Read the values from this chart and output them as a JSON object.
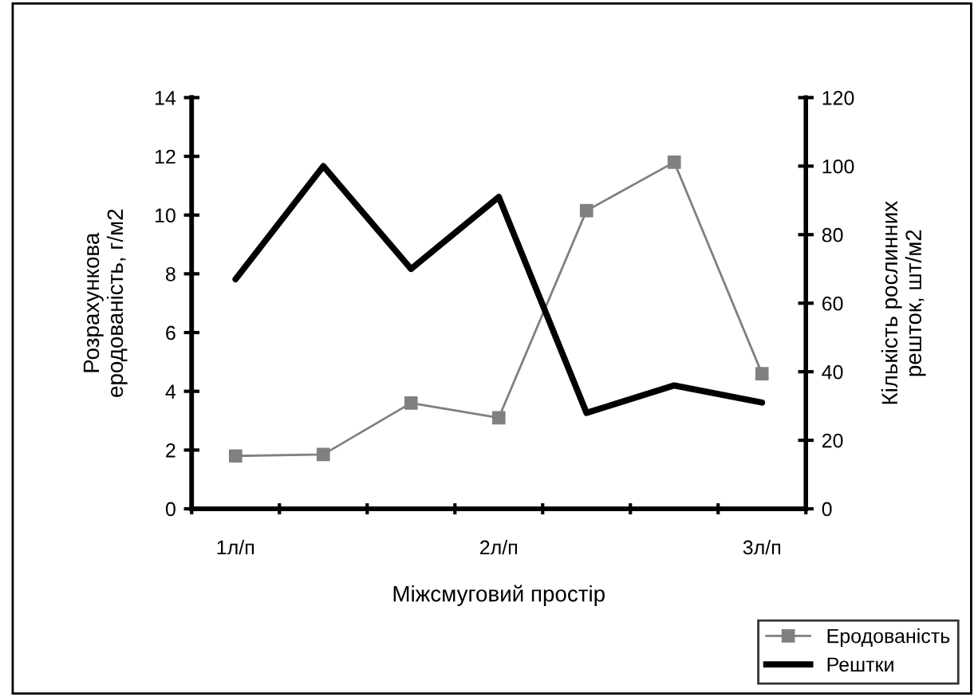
{
  "chart_data": {
    "type": "line",
    "categories": [
      "1л/п",
      null,
      null,
      "2л/п",
      null,
      null,
      "3л/п"
    ],
    "xlabel": "Міжсмуговий простір",
    "ylabel": "Розрахункова\nеродованість, г/м2",
    "y2label": "Кількість рослинних\nрешток, шт/м2",
    "series": [
      {
        "name": "Еродованість",
        "color": "#808080",
        "marker": "square",
        "values": [
          1.8,
          1.85,
          3.6,
          3.1,
          10.15,
          11.8,
          4.6
        ]
      },
      {
        "name": "Рештки",
        "color": "#000000",
        "axis": "y2",
        "marker": "none",
        "values": [
          67,
          100,
          70,
          91,
          28,
          36,
          31
        ]
      }
    ],
    "ylim": [
      0,
      14
    ],
    "yticks": [
      0,
      2,
      4,
      6,
      8,
      10,
      12,
      14
    ],
    "y2lim": [
      0,
      120
    ],
    "y2ticks": [
      0,
      20,
      40,
      60,
      80,
      100,
      120
    ],
    "legend": "bottom right",
    "grid": false
  }
}
